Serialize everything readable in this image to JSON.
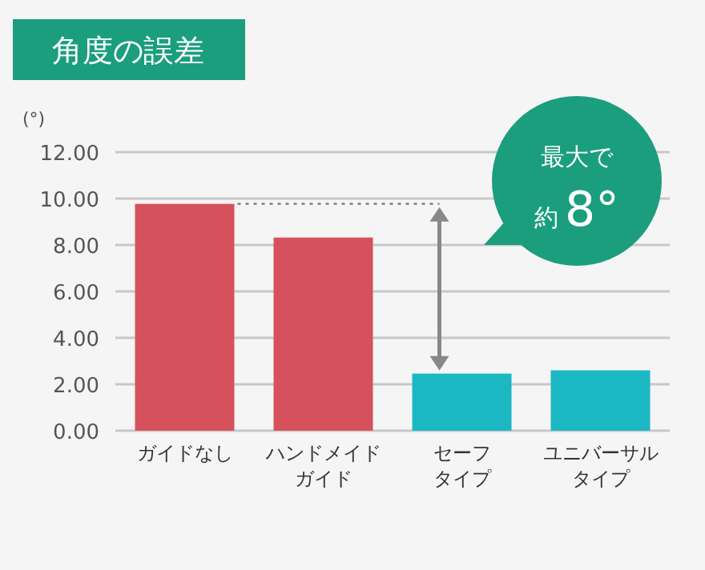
{
  "chart_data": {
    "type": "bar",
    "title": "角度の誤差",
    "ylabel": "(°)",
    "categories": [
      "ガイドなし",
      "ハンドメイドガイド",
      "セーフタイプ",
      "ユニバーサルタイプ"
    ],
    "values": [
      9.77,
      8.32,
      2.46,
      2.6
    ],
    "colors": [
      "#d5525d",
      "#d5525d",
      "#1bb8c4",
      "#1bb8c4"
    ],
    "ylim": [
      0,
      12
    ],
    "yticks": [
      {
        "value": 0,
        "label": "0.00"
      },
      {
        "value": 2,
        "label": "2.00"
      },
      {
        "value": 4,
        "label": "4.00"
      },
      {
        "value": 6,
        "label": "6.00"
      },
      {
        "value": 8,
        "label": "8.00"
      },
      {
        "value": 10,
        "label": "10.00"
      },
      {
        "value": 12,
        "label": "12.00"
      }
    ],
    "grid": "y",
    "ref_lines": [
      {
        "axis": "y",
        "value": 9.77,
        "color": "#888888",
        "line_style": "dotted"
      }
    ],
    "annotations": [
      "最大で約8°"
    ]
  }
}
